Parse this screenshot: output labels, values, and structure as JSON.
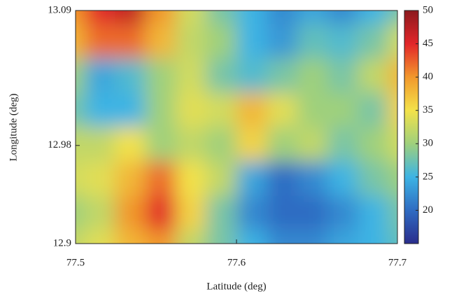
{
  "chart_data": {
    "type": "heatmap",
    "xlabel": "Latitude (deg)",
    "ylabel": "Longitude (deg)",
    "xlim": [
      77.5,
      77.7
    ],
    "xticks": [
      77.5,
      77.6,
      77.7
    ],
    "ylim": [
      12.9,
      13.09
    ],
    "yticks": [
      12.9,
      12.98,
      13.09
    ],
    "zlim": [
      15,
      50
    ],
    "zticks": [
      20,
      25,
      30,
      35,
      40,
      45,
      50
    ],
    "colorscale": [
      "#2a2d8c",
      "#2f6cc2",
      "#3db4e4",
      "#9fd07c",
      "#f3e24a",
      "#f2982c",
      "#e2262a",
      "#8c1a1e"
    ],
    "z": [
      [
        40,
        45,
        47,
        40,
        33,
        28,
        25,
        22,
        24,
        22,
        25,
        28
      ],
      [
        38,
        42,
        42,
        38,
        32,
        30,
        25,
        23,
        27,
        26,
        28,
        33
      ],
      [
        30,
        24,
        26,
        30,
        33,
        28,
        26,
        28,
        30,
        28,
        32,
        38
      ],
      [
        28,
        25,
        25,
        30,
        34,
        33,
        38,
        34,
        30,
        30,
        28,
        36
      ],
      [
        32,
        32,
        35,
        30,
        32,
        30,
        36,
        30,
        32,
        28,
        30,
        33
      ],
      [
        33,
        34,
        38,
        42,
        35,
        32,
        24,
        20,
        22,
        25,
        28,
        30
      ],
      [
        30,
        32,
        40,
        45,
        36,
        28,
        22,
        20,
        20,
        22,
        25,
        28
      ],
      [
        32,
        34,
        38,
        40,
        32,
        28,
        25,
        22,
        22,
        24,
        25,
        27
      ]
    ]
  }
}
